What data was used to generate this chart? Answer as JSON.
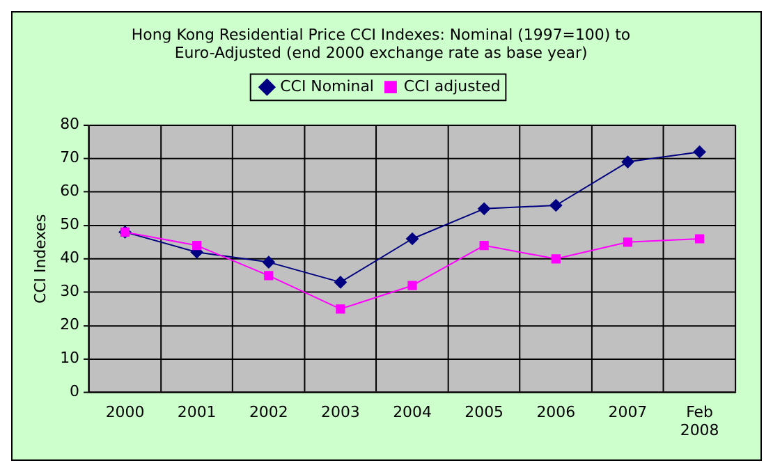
{
  "chart_data": {
    "type": "line",
    "title": "Hong Kong Residential Price CCI Indexes: Nominal (1997=100) to Euro-Adjusted (end 2000 exchange rate as base year)",
    "ylabel": "CCI Indexes",
    "categories": [
      "2000",
      "2001",
      "2002",
      "2003",
      "2004",
      "2005",
      "2006",
      "2007",
      "Feb 2008"
    ],
    "series": [
      {
        "name": "CCI Nominal",
        "color": "#000080",
        "marker": "diamond",
        "values": [
          48,
          42,
          39,
          33,
          46,
          55,
          56,
          69,
          72
        ]
      },
      {
        "name": "CCI adjusted",
        "color": "#ff00ff",
        "marker": "square",
        "values": [
          48,
          44,
          35,
          25,
          32,
          44,
          40,
          45,
          46
        ]
      }
    ],
    "ylim": [
      0,
      80
    ],
    "yticks": [
      0,
      10,
      20,
      30,
      40,
      50,
      60,
      70,
      80
    ],
    "grid": true,
    "legend": "top",
    "line_style": "solid"
  }
}
